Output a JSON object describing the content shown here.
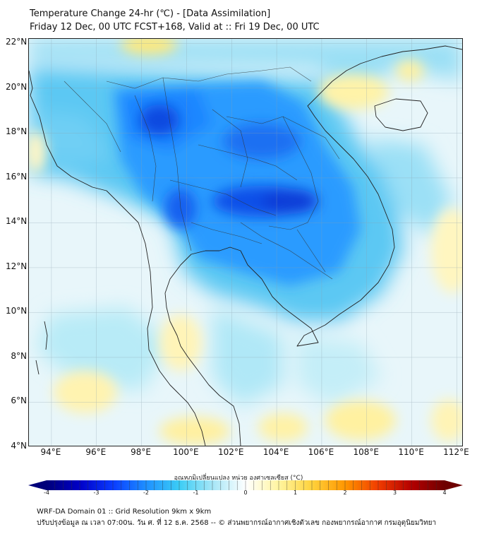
{
  "title": {
    "line1": "Temperature Change 24-hr (℃) - [Data Assimilation]",
    "line2": "Friday 12 Dec, 00 UTC FCST+168, Valid at :: Fri 19 Dec, 00 UTC"
  },
  "map": {
    "lat_ticks": [
      "22°N",
      "20°N",
      "18°N",
      "16°N",
      "14°N",
      "12°N",
      "10°N",
      "8°N",
      "6°N",
      "4°N"
    ],
    "lon_ticks": [
      "94°E",
      "96°E",
      "98°E",
      "100°E",
      "102°E",
      "104°E",
      "106°E",
      "108°E",
      "110°E",
      "112°E"
    ],
    "lon_range": [
      93,
      112.3
    ],
    "lat_range": [
      4,
      22.2
    ],
    "field": "24-hr temperature change",
    "field_description": "Strong cooling over mainland Southeast Asia centred on northeast Thailand / Cambodia; weak warming patches over the Gulf of Thailand, Malay Peninsula and South China Sea",
    "colors": {
      "strong_cool": "#0d3fe0",
      "moderate_cool": "#1e90ff",
      "weak_cool": "#7ad3f5",
      "neutral": "#e6f6fa",
      "weak_warm": "#fff2a8",
      "land_line": "#222222"
    }
  },
  "colorbar": {
    "title": "อุณหภูมิเปลี่ยนแปลง หน่วย องศาเซลเซียส (°C)",
    "ticks": [
      "-4",
      "-3",
      "-2",
      "-1",
      "0",
      "1",
      "2",
      "3",
      "4"
    ],
    "range": [
      -4,
      4
    ],
    "colors": [
      "#00007a",
      "#0000c8",
      "#0a3cff",
      "#1e90ff",
      "#3ccdf5",
      "#a5e6f7",
      "#ffffff",
      "#fff5a0",
      "#ffd23c",
      "#ff9600",
      "#f03c00",
      "#b40000",
      "#6e0000"
    ]
  },
  "footer": {
    "line1": "WRF-DA Domain 01 :: Grid Resolution 9km x 9km",
    "line2": "ปรับปรุงข้อมูล ณ เวลา 07:00น. วัน ศ. ที่ 12 ธ.ค. 2568 -- © ส่วนพยากรณ์อากาศเชิงตัวเลข กองพยากรณ์อากาศ กรมอุตุนิยมวิทยา"
  }
}
